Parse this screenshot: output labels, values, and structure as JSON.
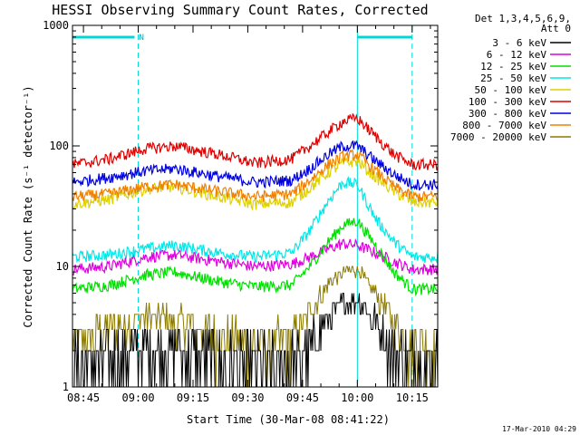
{
  "chart_data": {
    "type": "line",
    "title": "HESSI Observing Summary Count Rates, Corrected",
    "xlabel": "Start Time (30-Mar-08 08:41:22)",
    "ylabel": "Corrected Count Rate (s⁻¹ detector⁻¹)",
    "yscale": "log",
    "ylim": [
      1,
      1000
    ],
    "xlim": [
      "08:42",
      "10:22"
    ],
    "y_ticks": [
      "1",
      "10",
      "100",
      "1000"
    ],
    "x_ticks": [
      "08:45",
      "09:00",
      "09:15",
      "09:30",
      "09:45",
      "10:00",
      "10:15"
    ],
    "legend_header": [
      "Det 1,3,4,5,6,9,",
      "Att 0"
    ],
    "legend_position": "right",
    "footer": "17-Mar-2010 04:29",
    "night_label": "N",
    "night_bars": [
      [
        "08:42",
        "08:59"
      ],
      [
        "10:00",
        "10:15"
      ]
    ],
    "markers_dashed": [
      "09:00",
      "10:15"
    ],
    "markers_solid": [
      "10:00"
    ],
    "series": [
      {
        "name": "3 - 6 keV",
        "color": "#000000",
        "t": [
          "08:42",
          "08:52",
          "09:02",
          "09:12",
          "09:22",
          "09:32",
          "09:42",
          "09:47",
          "09:52",
          "09:56",
          "10:00",
          "10:05",
          "10:10",
          "10:15"
        ],
        "v": [
          1.5,
          1.7,
          2.2,
          2.0,
          1.6,
          1.4,
          1.5,
          2.2,
          3.5,
          5.0,
          5.5,
          3.5,
          2.0,
          1.6
        ]
      },
      {
        "name": "6 - 12 keV",
        "color": "#e000e0",
        "t": [
          "08:42",
          "08:52",
          "09:02",
          "09:10",
          "09:22",
          "09:32",
          "09:42",
          "09:47",
          "09:52",
          "09:56",
          "10:00",
          "10:05",
          "10:10",
          "10:15"
        ],
        "v": [
          9.5,
          10,
          12,
          12.5,
          11,
          10,
          10.5,
          12,
          14,
          15.5,
          15,
          13,
          11,
          9.5
        ]
      },
      {
        "name": "12 - 25 keV",
        "color": "#00e000",
        "t": [
          "08:42",
          "08:52",
          "09:02",
          "09:10",
          "09:22",
          "09:32",
          "09:42",
          "09:47",
          "09:52",
          "09:56",
          "10:00",
          "10:05",
          "10:10",
          "10:15"
        ],
        "v": [
          6.5,
          7,
          8.5,
          9,
          7.5,
          6.8,
          7,
          10,
          16,
          22,
          24,
          15,
          9,
          6.5
        ]
      },
      {
        "name": "25 - 50 keV",
        "color": "#00e8e8",
        "t": [
          "08:42",
          "08:52",
          "09:02",
          "09:10",
          "09:22",
          "09:32",
          "09:42",
          "09:47",
          "09:52",
          "09:56",
          "10:00",
          "10:05",
          "10:10",
          "10:15"
        ],
        "v": [
          12,
          12.5,
          14,
          15,
          13,
          12,
          13,
          20,
          35,
          50,
          48,
          25,
          16,
          12
        ]
      },
      {
        "name": "50 - 100 keV",
        "color": "#e0d000",
        "t": [
          "08:42",
          "08:52",
          "09:02",
          "09:10",
          "09:22",
          "09:32",
          "09:42",
          "09:47",
          "09:52",
          "09:56",
          "10:00",
          "10:05",
          "10:10",
          "10:15"
        ],
        "v": [
          33,
          36,
          44,
          46,
          38,
          33,
          34,
          45,
          60,
          72,
          75,
          55,
          42,
          34
        ]
      },
      {
        "name": "100 - 300 keV",
        "color": "#e00000",
        "t": [
          "08:42",
          "08:52",
          "09:02",
          "09:10",
          "09:22",
          "09:32",
          "09:42",
          "09:47",
          "09:52",
          "09:56",
          "10:00",
          "10:05",
          "10:10",
          "10:15"
        ],
        "v": [
          70,
          78,
          95,
          100,
          85,
          72,
          78,
          100,
          130,
          160,
          170,
          120,
          85,
          70
        ]
      },
      {
        "name": "300 - 800 keV",
        "color": "#0000e0",
        "t": [
          "08:42",
          "08:52",
          "09:02",
          "09:10",
          "09:22",
          "09:32",
          "09:42",
          "09:47",
          "09:52",
          "09:56",
          "10:00",
          "10:05",
          "10:10",
          "10:15"
        ],
        "v": [
          50,
          55,
          62,
          65,
          56,
          50,
          52,
          65,
          85,
          100,
          100,
          75,
          58,
          48
        ]
      },
      {
        "name": "800 - 7000 keV",
        "color": "#f08000",
        "t": [
          "08:42",
          "08:52",
          "09:02",
          "09:10",
          "09:22",
          "09:32",
          "09:42",
          "09:47",
          "09:52",
          "09:56",
          "10:00",
          "10:05",
          "10:10",
          "10:15"
        ],
        "v": [
          38,
          40,
          46,
          48,
          42,
          38,
          40,
          52,
          70,
          82,
          85,
          62,
          46,
          38
        ]
      },
      {
        "name": "7000 - 20000 keV",
        "color": "#8a7a00",
        "t": [
          "08:42",
          "08:52",
          "09:02",
          "09:10",
          "09:22",
          "09:32",
          "09:42",
          "09:47",
          "09:52",
          "09:56",
          "10:00",
          "10:05",
          "10:10",
          "10:15"
        ],
        "v": [
          2.2,
          3.0,
          3.8,
          3.6,
          2.6,
          2.2,
          2.5,
          4.2,
          7.0,
          9.0,
          9.5,
          6.0,
          3.5,
          2.2
        ]
      }
    ]
  }
}
